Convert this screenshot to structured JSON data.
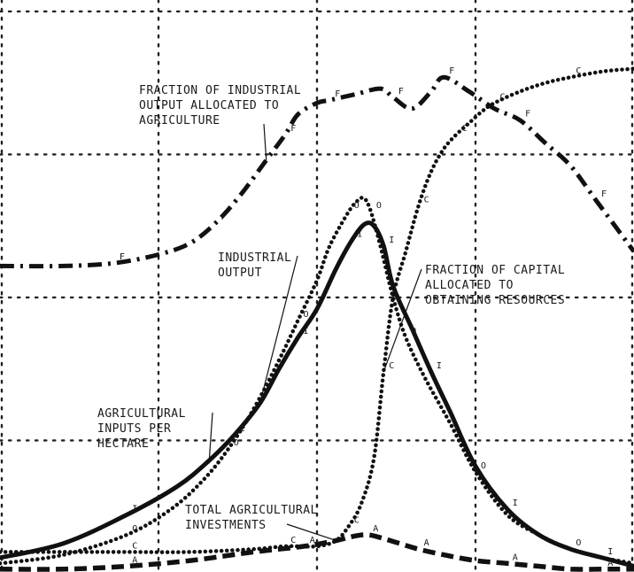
{
  "colors": {
    "ink": "#111111",
    "background": "#ffffff"
  },
  "chart_data": {
    "type": "line",
    "title": "",
    "xlabel": "",
    "ylabel": "",
    "xlim": [
      0,
      100
    ],
    "ylim": [
      0,
      100
    ],
    "grid": true,
    "legend": "none",
    "x_gridlines": [
      0,
      25,
      50,
      75,
      100
    ],
    "y_gridlines": [
      23,
      48,
      73,
      98
    ],
    "series": [
      {
        "name": "FRACTION OF INDUSTRIAL OUTPUT ALLOCATED TO AGRICULTURE",
        "style": "dash-dot",
        "marker": "F",
        "x": [
          0,
          10,
          18,
          25,
          30,
          34,
          38,
          42,
          45,
          47,
          50,
          52,
          56,
          60,
          62,
          65,
          68,
          70,
          74,
          78,
          82,
          86,
          90,
          94,
          100
        ],
        "y": [
          53.5,
          53.5,
          54,
          55.5,
          57.5,
          61,
          66,
          72,
          76.5,
          80,
          82,
          82.5,
          83.5,
          84.5,
          83,
          81,
          84,
          86.5,
          84,
          81,
          79,
          75,
          71,
          65,
          56
        ]
      },
      {
        "name": "INDUSTRIAL OUTPUT",
        "style": "dotted",
        "marker": "O",
        "x": [
          0,
          10,
          20,
          27,
          32,
          36,
          40,
          44,
          47,
          50,
          52,
          55,
          56.5,
          57.5,
          58.5,
          60,
          62,
          64,
          67,
          71,
          75,
          80,
          85,
          90,
          95,
          100
        ],
        "y": [
          1.5,
          3,
          6.5,
          11,
          16,
          21.5,
          28.5,
          37,
          44,
          51,
          57,
          63,
          65,
          65.3,
          63,
          57,
          48,
          41,
          34,
          26,
          17.5,
          10,
          6.5,
          4,
          2.5,
          1.5
        ]
      },
      {
        "name": "AGRICULTURAL INPUTS PER HECTARE",
        "style": "solid",
        "marker": "I",
        "x": [
          0,
          10,
          20,
          28,
          33,
          37,
          41,
          44,
          47,
          50,
          53,
          55.5,
          57.5,
          59,
          60.5,
          62,
          65,
          68,
          71,
          75,
          80,
          85,
          90,
          95,
          100
        ],
        "y": [
          2.5,
          5,
          10,
          15,
          19.5,
          24,
          29.5,
          35.5,
          41,
          46,
          53,
          58,
          60.8,
          60.5,
          57,
          50,
          42.5,
          35,
          28,
          18.5,
          11,
          6.5,
          4,
          2.5,
          1
        ]
      },
      {
        "name": "FRACTION OF CAPITAL ALLOCATED TO OBTAINING RESOURCES",
        "style": "dotted",
        "marker": "C",
        "x": [
          0,
          10,
          20,
          30,
          40,
          45,
          50,
          53,
          55,
          57,
          59,
          60.5,
          62,
          64,
          66,
          68,
          70,
          72,
          74,
          76,
          78,
          82,
          86,
          90,
          95,
          100
        ],
        "y": [
          3.5,
          3.5,
          3.5,
          3.5,
          4,
          4.5,
          4.5,
          5.5,
          8,
          12,
          20,
          35,
          48,
          56,
          64,
          70,
          74,
          76.5,
          78.5,
          80.5,
          82,
          84,
          85.5,
          86.5,
          87.5,
          88
        ]
      },
      {
        "name": "TOTAL AGRICULTURAL INVESTMENTS",
        "style": "dashed",
        "marker": "A",
        "x": [
          0,
          10,
          20,
          30,
          40,
          48,
          53,
          56,
          58,
          60,
          63,
          66,
          70,
          75,
          80,
          85,
          90,
          95,
          100
        ],
        "y": [
          0.5,
          0.5,
          1,
          2,
          3.5,
          4.5,
          5.5,
          6.3,
          6.5,
          6,
          5,
          4,
          3,
          2,
          1.5,
          1,
          0.5,
          0.5,
          0.5
        ]
      }
    ],
    "annotations": [
      {
        "lines": [
          "FRACTION OF INDUSTRIAL",
          "OUTPUT ALLOCATED TO",
          "AGRICULTURE"
        ]
      },
      {
        "lines": [
          "INDUSTRIAL",
          "OUTPUT"
        ]
      },
      {
        "lines": [
          "FRACTION OF CAPITAL",
          "ALLOCATED TO",
          "OBTAINING RESOURCES"
        ]
      },
      {
        "lines": [
          "AGRICULTURAL",
          "INPUTS PER",
          "HECTARE"
        ]
      },
      {
        "lines": [
          "TOTAL AGRICULTURAL",
          "INVESTMENTS"
        ]
      }
    ]
  }
}
